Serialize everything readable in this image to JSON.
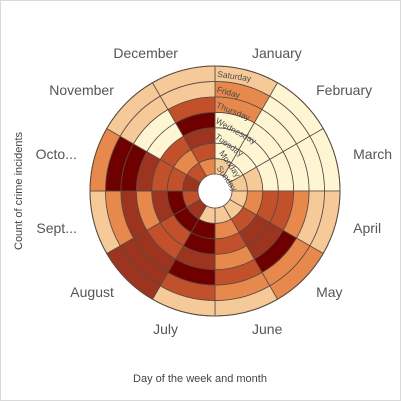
{
  "chart_data": {
    "type": "heatmap",
    "layout": "radial",
    "xlabel": "Day of the week and month",
    "ylabel": "Count of crime incidents",
    "months": [
      "January",
      "February",
      "March",
      "April",
      "May",
      "June",
      "July",
      "August",
      "Sept...",
      "Octo...",
      "November",
      "December"
    ],
    "days": [
      "Sunday",
      "Monday",
      "Tuesday",
      "Wednesday",
      "Thursday",
      "Friday",
      "Saturday"
    ],
    "color_scale": [
      "#fef6d3",
      "#f5c998",
      "#e7884c",
      "#c2502a",
      "#9c3420",
      "#6f0000"
    ],
    "values": [
      [
        1,
        0,
        0,
        0,
        2,
        2,
        1
      ],
      [
        0,
        0,
        0,
        0,
        0,
        0,
        0
      ],
      [
        1,
        1,
        0,
        0,
        0,
        0,
        0
      ],
      [
        1,
        2,
        3,
        3,
        2,
        1,
        1
      ],
      [
        1,
        3,
        4,
        4,
        5,
        2,
        2
      ],
      [
        1,
        2,
        3,
        2,
        3,
        2,
        1
      ],
      [
        1,
        5,
        5,
        4,
        5,
        3,
        1
      ],
      [
        4,
        5,
        3,
        3,
        4,
        4,
        4
      ],
      [
        3,
        5,
        4,
        2,
        4,
        2,
        1
      ],
      [
        4,
        3,
        3,
        4,
        5,
        5,
        2
      ],
      [
        3,
        2,
        3,
        0,
        0,
        1,
        1
      ],
      [
        2,
        3,
        4,
        5,
        3,
        1,
        1
      ]
    ]
  }
}
